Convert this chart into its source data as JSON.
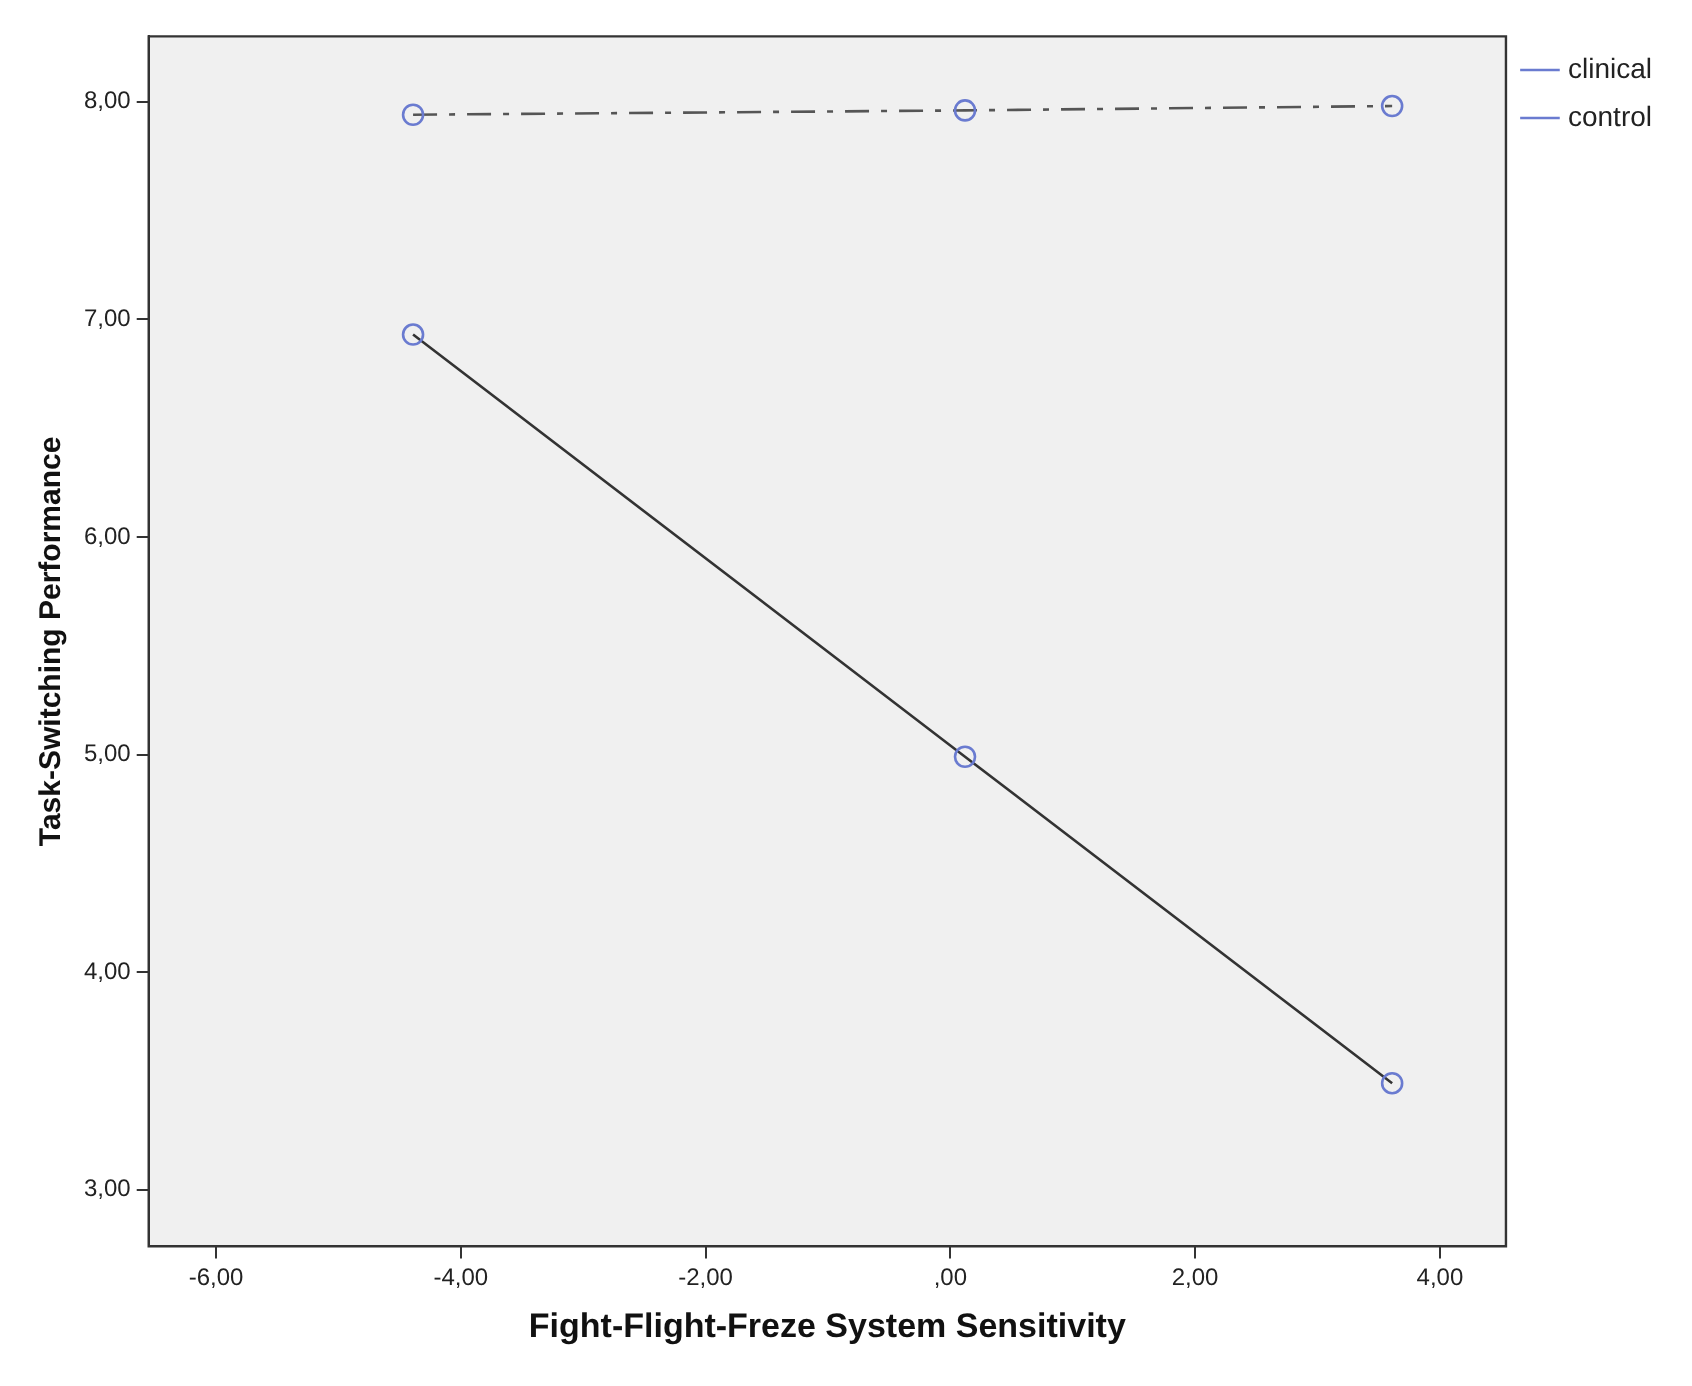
{
  "chart_data": {
    "type": "line",
    "xlabel": "Fight-Flight-Freze System Sensitivity",
    "ylabel": "Task-Switching Performance",
    "xlim": [
      -6.55,
      4.54
    ],
    "ylim": [
      2.74,
      8.3
    ],
    "xticks": [
      {
        "value": -6,
        "label": "-6,00"
      },
      {
        "value": -4,
        "label": "-4,00"
      },
      {
        "value": -2,
        "label": "-2,00"
      },
      {
        "value": 0,
        "label": ",00"
      },
      {
        "value": 2,
        "label": "2,00"
      },
      {
        "value": 4,
        "label": "4,00"
      }
    ],
    "yticks": [
      {
        "value": 3,
        "label": "3,00"
      },
      {
        "value": 4,
        "label": "4,00"
      },
      {
        "value": 5,
        "label": "5,00"
      },
      {
        "value": 6,
        "label": "6,00"
      },
      {
        "value": 7,
        "label": "7,00"
      },
      {
        "value": 8,
        "label": "8,00"
      }
    ],
    "x": [
      -4.39,
      0.12,
      3.61
    ],
    "series": [
      {
        "name": "clinical",
        "color": "#333333",
        "values": [
          6.93,
          4.99,
          3.49
        ],
        "line_style": "solid"
      },
      {
        "name": "control",
        "color": "#555555",
        "values": [
          7.94,
          7.96,
          7.98
        ],
        "line_style": "dashed"
      }
    ],
    "marker": "circle",
    "grid": false,
    "legend": "top right"
  }
}
